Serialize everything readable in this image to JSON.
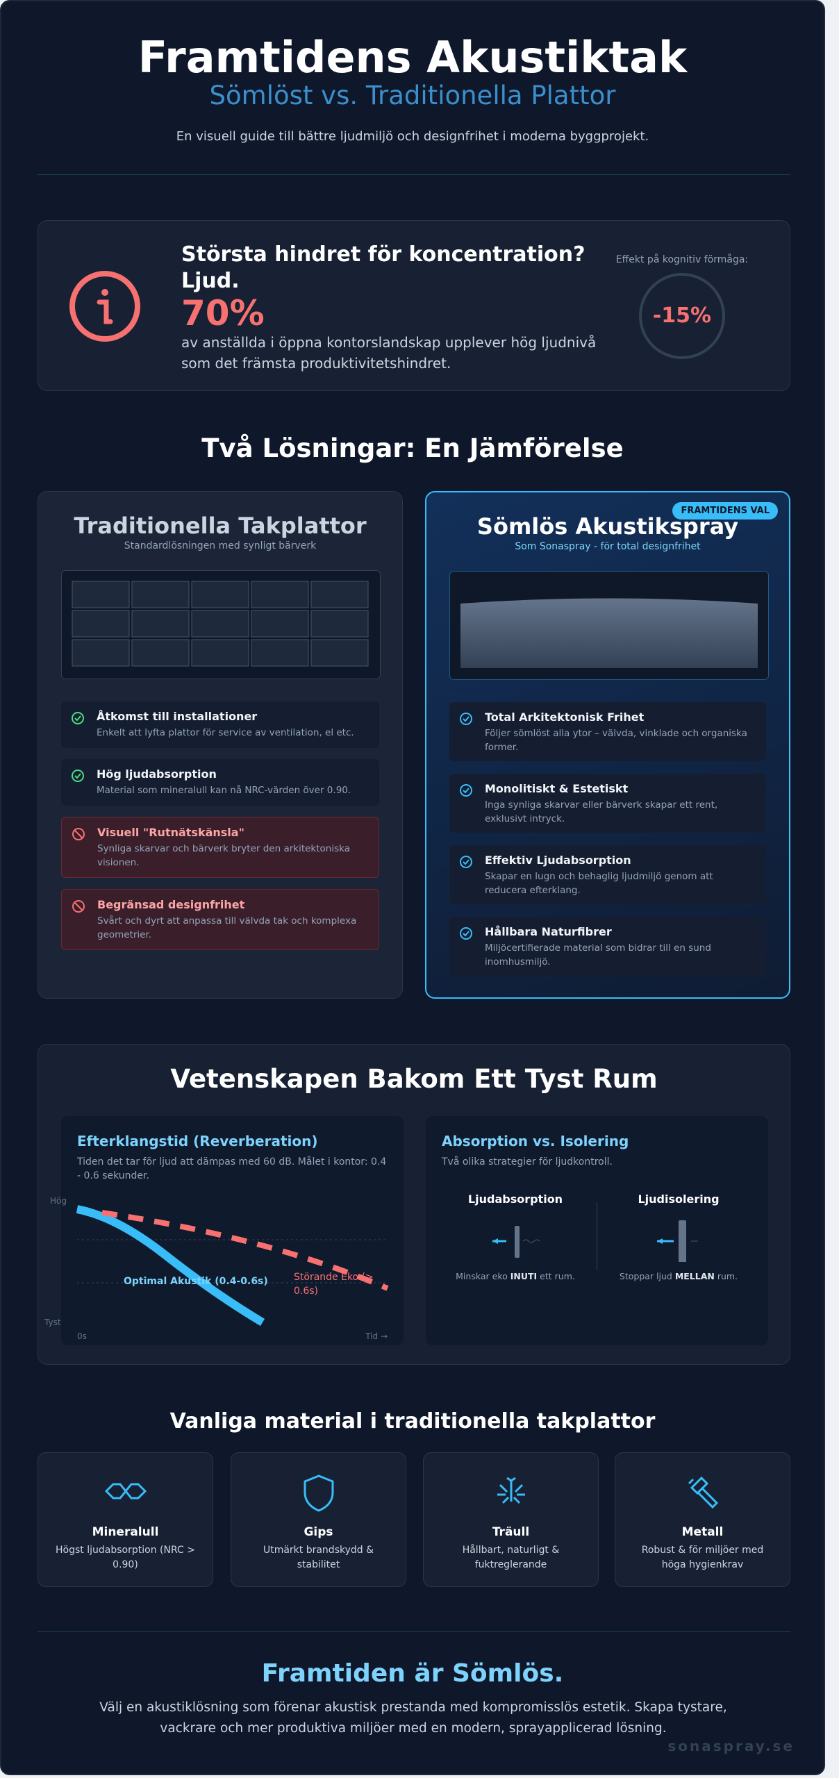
{
  "header": {
    "title": "Framtidens Akustiktak",
    "subtitle": "Sömlöst vs. Traditionella Plattor",
    "intro": "En visuell guide till bättre ljudmiljö och designfrihet i moderna byggprojekt."
  },
  "stat": {
    "heading": "Största hindret för koncentration? Ljud.",
    "value": "70%",
    "text": "av anställda i öppna kontorslandskap upplever hög ljudnivå som det främsta produktivitetshindret.",
    "effect_label": "Effekt på kognitiv förmåga:",
    "effect_value": "-15%"
  },
  "comparison": {
    "title": "Två Lösningar: En Jämförelse",
    "traditional": {
      "title": "Traditionella Takplattor",
      "subtitle": "Standardlösningen med synligt bärverk",
      "items": [
        {
          "title": "Åtkomst till installationer",
          "text": "Enkelt att lyfta plattor för service av ventilation, el etc."
        },
        {
          "title": "Hög ljudabsorption",
          "text": "Material som mineralull kan nå NRC-värden över 0.90."
        },
        {
          "title": "Visuell \"Rutnätskänsla\"",
          "text": "Synliga skarvar och bärverk bryter den arkitektoniska visionen."
        },
        {
          "title": "Begränsad designfrihet",
          "text": "Svårt och dyrt att anpassa till välvda tak och komplexa geometrier."
        }
      ]
    },
    "seamless": {
      "badge": "FRAMTIDENS VAL",
      "title": "Sömlös Akustikspray",
      "subtitle": "Som Sonaspray - för total designfrihet",
      "items": [
        {
          "title": "Total Arkitektonisk Frihet",
          "text": "Följer sömlöst alla ytor – välvda, vinklade och organiska former."
        },
        {
          "title": "Monolitiskt & Estetiskt",
          "text": "Inga synliga skarvar eller bärverk skapar ett rent, exklusivt intryck."
        },
        {
          "title": "Effektiv Ljudabsorption",
          "text": "Skapar en lugn och behaglig ljudmiljö genom att reducera efterklang."
        },
        {
          "title": "Hållbara Naturfibrer",
          "text": "Miljöcertifierade material som bidrar till en sund inomhusmiljö."
        }
      ]
    }
  },
  "science": {
    "title": "Vetenskapen Bakom Ett Tyst Rum",
    "reverb": {
      "title": "Efterklangstid (Reverberation)",
      "text": "Tiden det tar för ljud att dämpas med 60 dB. Målet i kontor: 0.4 - 0.6 sekunder.",
      "y_high": "Hög",
      "y_low": "Tyst",
      "x_start": "0s",
      "x_end": "Tid →",
      "optimal": "Optimal Akustik (0.4-0.6s)",
      "echo": "Störande Eko (> 0.6s)"
    },
    "absorption": {
      "title": "Absorption vs. Isolering",
      "text": "Två olika strategier för ljudkontroll.",
      "absorb_title": "Ljudabsorption",
      "absorb_caption": [
        "Minskar eko ",
        "INUTI",
        " ett rum."
      ],
      "isolate_title": "Ljudisolering",
      "isolate_caption": [
        "Stoppar ljud ",
        "MELLAN",
        " rum."
      ]
    }
  },
  "materials": {
    "title": "Vanliga material i traditionella takplattor",
    "items": [
      {
        "name": "Mineralull",
        "text": "Högst ljudabsorption (NRC > 0.90)"
      },
      {
        "name": "Gips",
        "text": "Utmärkt brandskydd & stabilitet"
      },
      {
        "name": "Träull",
        "text": "Hållbart, naturligt & fuktreglerande"
      },
      {
        "name": "Metall",
        "text": "Robust & för miljöer med höga hygienkrav"
      }
    ]
  },
  "footer": {
    "title": "Framtiden är Sömlös.",
    "text": "Välj en akustiklösning som förenar akustisk prestanda med kompromisslös estetik. Skapa tystare, vackrare och mer produktiva miljöer med en modern, sprayapplicerad lösning.",
    "brand": "sonaspray.se"
  }
}
